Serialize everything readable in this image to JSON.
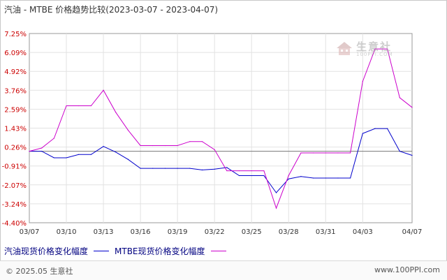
{
  "title": "汽油 - MTBE 价格趋势比较(2023-03-07 - 2023-04-07)",
  "chart_data": {
    "type": "line",
    "title": "汽油 - MTBE 价格趋势比较(2023-03-07 - 2023-04-07)",
    "x": [
      "03/07",
      "03/08",
      "03/09",
      "03/10",
      "03/11",
      "03/12",
      "03/13",
      "03/14",
      "03/15",
      "03/16",
      "03/17",
      "03/18",
      "03/19",
      "03/20",
      "03/21",
      "03/22",
      "03/23",
      "03/24",
      "03/25",
      "03/26",
      "03/27",
      "03/28",
      "03/29",
      "03/30",
      "03/31",
      "04/01",
      "04/02",
      "04/03",
      "04/04",
      "04/05",
      "04/06",
      "04/07"
    ],
    "x_ticks": [
      "03/07",
      "03/10",
      "03/13",
      "03/16",
      "03/19",
      "03/22",
      "03/25",
      "03/28",
      "03/31",
      "04/03",
      "04/07"
    ],
    "y_ticks": [
      "7.25%",
      "6.09%",
      "4.92%",
      "3.76%",
      "2.59%",
      "1.43%",
      "0.26%",
      "-0.91%",
      "-2.07%",
      "-3.24%",
      "-4.40%"
    ],
    "ylim": [
      -4.4,
      7.25
    ],
    "grid": true,
    "legend_position": "bottom",
    "series": [
      {
        "name": "汽油现货价格变化幅度",
        "color": "#0000cc",
        "values": [
          0,
          0,
          -0.4,
          -0.4,
          -0.2,
          -0.2,
          0.3,
          -0.05,
          -0.5,
          -1.05,
          -1.05,
          -1.05,
          -1.05,
          -1.05,
          -1.15,
          -1.1,
          -1.0,
          -1.5,
          -1.5,
          -1.5,
          -2.55,
          -1.7,
          -1.55,
          -1.65,
          -1.65,
          -1.65,
          -1.65,
          1.1,
          1.4,
          1.4,
          0,
          -0.25
        ]
      },
      {
        "name": "MTBE现货价格变化幅度",
        "color": "#cc00cc",
        "values": [
          0,
          0.2,
          0.8,
          2.8,
          2.8,
          2.8,
          3.76,
          2.4,
          1.3,
          0.35,
          0.35,
          0.35,
          0.35,
          0.6,
          0.6,
          0.1,
          -1.2,
          -1.2,
          -1.2,
          -1.2,
          -3.5,
          -1.5,
          -0.1,
          -0.1,
          -0.1,
          -0.1,
          -0.1,
          4.3,
          6.3,
          6.3,
          3.3,
          2.7
        ]
      }
    ]
  },
  "legend": [
    {
      "label": "汽油现货价格变化幅度",
      "color": "#0000cc"
    },
    {
      "label": "MTBE现货价格变化幅度",
      "color": "#cc00cc"
    }
  ],
  "watermark": {
    "text": "生意社",
    "url": "100PPI.COM"
  },
  "footer": {
    "copyright": "© 2025.05 生意社",
    "site": "www.100PPI.com"
  }
}
